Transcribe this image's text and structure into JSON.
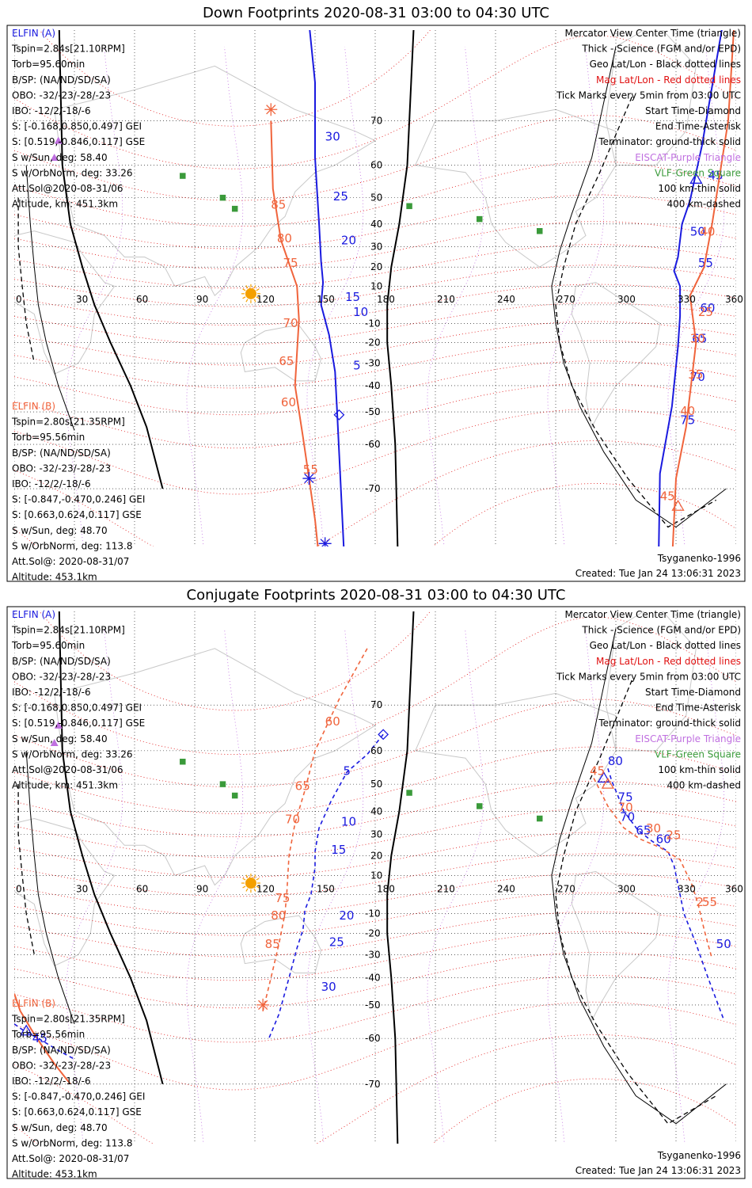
{
  "colors": {
    "a": "#1a1adf",
    "b": "#f0643c",
    "mag": "#e01010",
    "purple": "#c070e0",
    "green": "#3a9a3a",
    "sun": "#f4a000"
  },
  "chart_data": [
    {
      "type": "line",
      "title": "Down Footprints 2020-08-31 03:00 to 04:30 UTC",
      "projection": "Mercator",
      "xlim": [
        0,
        360
      ],
      "ylim": [
        -85,
        85
      ],
      "x_ticks": [
        "0",
        "30",
        "60",
        "90",
        "120",
        "150",
        "180",
        "210",
        "240",
        "270",
        "300",
        "330",
        "360"
      ],
      "y_ticks": [
        "70",
        "60",
        "50",
        "40",
        "30",
        "20",
        "10",
        "-10",
        "-20",
        "-30",
        "-40",
        "-50",
        "-60",
        "-70"
      ],
      "left_info_a": {
        "header": "ELFIN (A)",
        "lines": [
          "Tspin=2.84s[21.10RPM]",
          "Torb=95.60min",
          "B/SP: (NA/ND/SD/SA)",
          "OBO: -32/-23/-28/-23",
          "IBO: -12/2/-18/-6",
          "S: [-0.168,0.850,0.497] GEI",
          "S: [0.519,-0.846,0.117] GSE",
          "S w/Sun, deg: 58.40",
          "S w/OrbNorm, deg: 33.26",
          "Att.Sol@2020-08-31/06",
          "Altitude, km: 451.3km"
        ]
      },
      "left_info_b": {
        "header": "ELFIN (B)",
        "lines": [
          "Tspin=2.80s[21.35RPM]",
          "Torb=95.56min",
          "B/SP: (NA/ND/SD/SA)",
          "OBO: -32/-23/-28/-23",
          "IBO: -12/2/-18/-6",
          "S: [-0.847,-0.470,0.246] GEI",
          "S: [0.663,0.624,0.117] GSE",
          "S w/Sun, deg: 48.70",
          "S w/OrbNorm, deg: 113.8",
          "Att.Sol@: 2020-08-31/07",
          "Altitude: 453.1km"
        ]
      },
      "legend": [
        {
          "text": "Mercator View Center Time (triangle)",
          "color": "black"
        },
        {
          "text": "Thick - Science (FGM and/or EPD)",
          "color": "black"
        },
        {
          "text": "Geo Lat/Lon - Black dotted lines",
          "color": "black"
        },
        {
          "text": "Mag Lat/Lon - Red dotted lines",
          "color": "mag"
        },
        {
          "text": "Tick Marks every 5min from 03:00 UTC",
          "color": "black"
        },
        {
          "text": "Start Time-Diamond",
          "color": "black"
        },
        {
          "text": "End Time-Asterisk",
          "color": "black"
        },
        {
          "text": "Terminator: ground-thick solid",
          "color": "black"
        },
        {
          "text": "EISCAT-Purple Triangle",
          "color": "purple"
        },
        {
          "text": "VLF-Green Square",
          "color": "green"
        },
        {
          "text": "100 km-thin solid",
          "color": "black"
        },
        {
          "text": "400 km-dashed",
          "color": "black"
        }
      ],
      "credit": "Tsyganenko-1996",
      "created": "Created: Tue Jan 24 13:06:31 2023",
      "series": [
        {
          "name": "ELFIN (A)",
          "color": "a",
          "dashed": false,
          "pts": [
            [
              147,
              82
            ],
            [
              150,
              76
            ],
            [
              150,
              62
            ],
            [
              152,
              40
            ],
            [
              153,
              23
            ],
            [
              154,
              12
            ],
            [
              153,
              0
            ],
            [
              157,
              -16
            ],
            [
              160,
              -34
            ],
            [
              161,
              -50
            ],
            [
              164,
              -77
            ],
            [
              166,
              -90
            ]
          ],
          "start": [
            162,
            -51
          ],
          "end": [
            155,
            -78
          ],
          "ticks": [
            [
              "30",
              155,
              66
            ],
            [
              "25",
              159,
              49
            ],
            [
              "20",
              163,
              31
            ],
            [
              "15",
              165,
              2
            ],
            [
              "10",
              169,
              -6
            ],
            [
              "5",
              169,
              -33
            ]
          ]
        },
        {
          "name": "ELFIN (A)",
          "color": "a",
          "dashed": false,
          "pts": [
            [
              356,
              85
            ],
            [
              343,
              65
            ],
            [
              337,
              49
            ],
            [
              333,
              40
            ],
            [
              331,
              25
            ],
            [
              329,
              18
            ],
            [
              332,
              10
            ],
            [
              332,
              -6
            ],
            [
              331,
              -22
            ],
            [
              328,
              -48
            ],
            [
              322,
              -67
            ],
            [
              321,
              -83
            ]
          ],
          "triangle": [
            340,
            56
          ],
          "ticks": [
            [
              "40",
              356,
              83
            ],
            [
              "45",
              346,
              56
            ],
            [
              "50",
              337,
              35
            ],
            [
              "55",
              341,
              20
            ],
            [
              "60",
              342,
              -4
            ],
            [
              "65",
              338,
              -20
            ],
            [
              "70",
              337,
              -38
            ],
            [
              "75",
              332,
              -54
            ],
            [
              "80",
              321,
              -84
            ]
          ]
        },
        {
          "name": "ELFIN (B)",
          "color": "b",
          "dashed": false,
          "pts": [
            [
              128,
              70
            ],
            [
              129,
              53
            ],
            [
              133,
              33
            ],
            [
              141,
              10
            ],
            [
              142,
              -8
            ],
            [
              141,
              -25
            ],
            [
              140,
              -40
            ],
            [
              144,
              -58
            ],
            [
              150,
              -75
            ],
            [
              155,
              -88
            ]
          ],
          "end": [
            128,
            72
          ],
          "ticks": [
            [
              "85",
              128,
              46
            ],
            [
              "80",
              131,
              32
            ],
            [
              "75",
              134,
              20
            ],
            [
              "70",
              134,
              -12
            ],
            [
              "65",
              132,
              -31
            ],
            [
              "60",
              133,
              -48
            ],
            [
              "55",
              144,
              -67
            ]
          ]
        },
        {
          "name": "ELFIN (B)",
          "color": "b",
          "dashed": false,
          "pts": [
            [
              360,
              84
            ],
            [
              356,
              70
            ],
            [
              348,
              40
            ],
            [
              344,
              20
            ],
            [
              337,
              5
            ],
            [
              340,
              -20
            ],
            [
              338,
              -36
            ],
            [
              335,
              -55
            ],
            [
              330,
              -68
            ],
            [
              328,
              -80
            ]
          ],
          "triangle": [
            331,
            -73
          ],
          "ticks": [
            [
              "40",
              342,
              35
            ],
            [
              "25",
              341,
              -6
            ],
            [
              "30",
              337,
              -20
            ],
            [
              "35",
              336,
              -37
            ],
            [
              "40",
              332,
              -51
            ],
            [
              "45",
              322,
              -72
            ]
          ]
        }
      ],
      "start_diamond_b": [
        143,
        87
      ],
      "end_asterisk_a": [
        147,
        -68
      ]
    },
    {
      "type": "line",
      "title": "Conjugate Footprints 2020-08-31 03:00 to 04:30 UTC",
      "projection": "Mercator",
      "xlim": [
        0,
        360
      ],
      "ylim": [
        -85,
        85
      ],
      "x_ticks": [
        "0",
        "30",
        "60",
        "90",
        "120",
        "150",
        "180",
        "210",
        "240",
        "270",
        "300",
        "330",
        "360"
      ],
      "y_ticks": [
        "70",
        "60",
        "50",
        "40",
        "30",
        "20",
        "10",
        "-10",
        "-20",
        "-30",
        "-40",
        "-50",
        "-60",
        "-70"
      ],
      "left_info_a": {
        "header": "ELFIN (A)",
        "lines": [
          "Tspin=2.84s[21.10RPM]",
          "Torb=95.60min",
          "B/SP: (NA/ND/SD/SA)",
          "OBO: -32/-23/-28/-23",
          "IBO: -12/2/-18/-6",
          "S: [-0.168,0.850,0.497] GEI",
          "S: [0.519,-0.846,0.117] GSE",
          "S w/Sun, deg: 58.40",
          "S w/OrbNorm, deg: 33.26",
          "Att.Sol@2020-08-31/06",
          "Altitude, km: 451.3km"
        ]
      },
      "left_info_b": {
        "header": "ELFIN (B)",
        "lines": [
          "Tspin=2.80s[21.35RPM]",
          "Torb=95.56min",
          "B/SP: (NA/ND/SD/SA)",
          "OBO: -32/-23/-28/-23",
          "IBO: -12/2/-18/-6",
          "S: [-0.847,-0.470,0.246] GEI",
          "S: [0.663,0.624,0.117] GSE",
          "S w/Sun, deg: 48.70",
          "S w/OrbNorm, deg: 113.8",
          "Att.Sol@: 2020-08-31/07",
          "Altitude: 453.1km"
        ]
      },
      "legend": [
        {
          "text": "Mercator View Center Time (triangle)",
          "color": "black"
        },
        {
          "text": "Thick - Science (FGM and/or EPD)",
          "color": "black"
        },
        {
          "text": "Geo Lat/Lon - Black dotted lines",
          "color": "black"
        },
        {
          "text": "Mag Lat/Lon - Red dotted lines",
          "color": "mag"
        },
        {
          "text": "Tick Marks every 5min from 03:00 UTC",
          "color": "black"
        },
        {
          "text": "Start Time-Diamond",
          "color": "black"
        },
        {
          "text": "End Time-Asterisk",
          "color": "black"
        },
        {
          "text": "Terminator: ground-thick solid",
          "color": "black"
        },
        {
          "text": "EISCAT-Purple Triangle",
          "color": "purple"
        },
        {
          "text": "VLF-Green Square",
          "color": "green"
        },
        {
          "text": "100 km-thin solid",
          "color": "black"
        },
        {
          "text": "400 km-dashed",
          "color": "black"
        }
      ],
      "credit": "Tsyganenko-1996",
      "created": "Created: Tue Jan 24 13:06:31 2023",
      "series": [
        {
          "name": "ELFIN (A)",
          "color": "a",
          "dashed": true,
          "pts": [
            [
              184,
              64
            ],
            [
              176,
              59
            ],
            [
              166,
              54
            ],
            [
              158,
              44
            ],
            [
              152,
              33
            ],
            [
              150,
              22
            ],
            [
              150,
              14
            ],
            [
              148,
              0
            ],
            [
              145,
              -8
            ],
            [
              144,
              -18
            ],
            [
              141,
              -27
            ],
            [
              137,
              -40
            ],
            [
              132,
              -53
            ],
            [
              127,
              -60
            ]
          ],
          "start": [
            184,
            64
          ],
          "ticks": [
            [
              "5",
              164,
              53
            ],
            [
              "10",
              163,
              34
            ],
            [
              "15",
              158,
              21
            ],
            [
              "20",
              162,
              -13
            ],
            [
              "25",
              157,
              -26
            ],
            [
              "30",
              153,
              -45
            ]
          ]
        },
        {
          "name": "ELFIN (B)",
          "color": "b",
          "dashed": true,
          "pts": [
            [
              176,
              78
            ],
            [
              162,
              71
            ],
            [
              150,
              60
            ],
            [
              145,
              48
            ],
            [
              140,
              35
            ],
            [
              137,
              20
            ],
            [
              136,
              2
            ],
            [
              135,
              -10
            ],
            [
              132,
              -25
            ],
            [
              128,
              -40
            ],
            [
              124,
              -52
            ]
          ],
          "end": [
            124,
            -50
          ],
          "ticks": [
            [
              "60",
              155,
              66
            ],
            [
              "65",
              140,
              48
            ],
            [
              "70",
              135,
              35
            ],
            [
              "75",
              130,
              -4
            ],
            [
              "80",
              128,
              -13
            ],
            [
              "85",
              125,
              -27
            ]
          ]
        },
        {
          "name": "ELFIN (A)",
          "color": "a",
          "dashed": true,
          "pts": [
            [
              296,
              55
            ],
            [
              298,
              51
            ],
            [
              301,
              46
            ],
            [
              304,
              40
            ],
            [
              311,
              32
            ],
            [
              318,
              27
            ],
            [
              326,
              22
            ],
            [
              329,
              15
            ],
            [
              332,
              0
            ],
            [
              334,
              -10
            ],
            [
              340,
              -25
            ],
            [
              346,
              -40
            ],
            [
              354,
              -55
            ]
          ],
          "triangle": [
            294,
            52
          ],
          "ticks": [
            [
              "80",
              296,
              56
            ],
            [
              "75",
              301,
              44
            ],
            [
              "70",
              302,
              36
            ],
            [
              "65",
              310,
              30
            ],
            [
              "60",
              320,
              26
            ],
            [
              "50",
              350,
              -27
            ]
          ]
        },
        {
          "name": "ELFIN (B)",
          "color": "b",
          "dashed": true,
          "pts": [
            [
              289,
              52
            ],
            [
              292,
              48
            ],
            [
              296,
              42
            ],
            [
              304,
              33
            ],
            [
              312,
              28
            ],
            [
              322,
              24
            ],
            [
              332,
              18
            ],
            [
              338,
              5
            ],
            [
              341,
              -5
            ],
            [
              344,
              -18
            ],
            [
              348,
              -32
            ]
          ],
          "triangle": [
            296,
            50
          ],
          "ticks": [
            [
              "45",
              287,
              53
            ],
            [
              "70",
              301,
              40
            ],
            [
              "30",
              315,
              31
            ],
            [
              "25",
              325,
              28
            ],
            [
              "2",
              340,
              -6
            ],
            [
              "55",
              343,
              -6
            ]
          ]
        },
        {
          "name": "ELFIN (B)",
          "color": "b",
          "dashed": false,
          "pts": [
            [
              0,
              -46
            ],
            [
              3,
              -52
            ],
            [
              9,
              -58
            ],
            [
              14,
              -62
            ],
            [
              20,
              -66
            ],
            [
              28,
              -70
            ]
          ],
          "ticks": []
        },
        {
          "name": "ELFIN (A)",
          "color": "a",
          "dashed": true,
          "pts": [
            [
              0,
              -56
            ],
            [
              5,
              -58
            ],
            [
              12,
              -60
            ],
            [
              22,
              -63
            ],
            [
              30,
              -65
            ]
          ],
          "triangle": [
            6,
            -58
          ],
          "ticks": [
            [
              "45",
              9,
              -61
            ]
          ]
        }
      ]
    }
  ]
}
